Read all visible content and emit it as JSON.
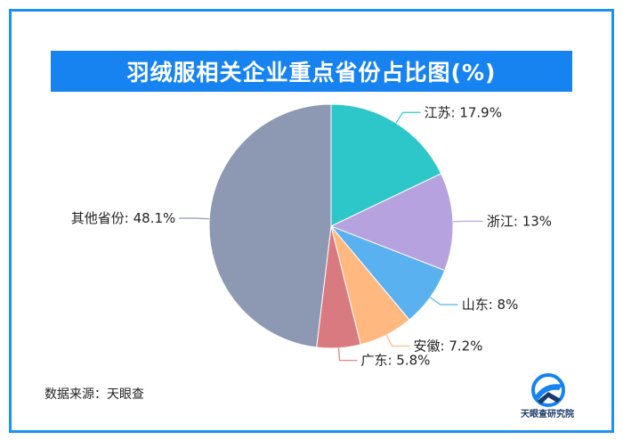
{
  "title": "羽绒服相关企业重点省份占比图(%)",
  "source": "数据来源：天眼查",
  "logo_text": "天眼查研究院",
  "chart_data": {
    "type": "pie",
    "title": "羽绒服相关企业重点省份占比图(%)",
    "slices": [
      {
        "label": "江苏",
        "value": 17.9,
        "color": "#2ec7c9",
        "text": "江苏: 17.9%"
      },
      {
        "label": "浙江",
        "value": 13,
        "color": "#b6a2de",
        "text": "浙江: 13%"
      },
      {
        "label": "山东",
        "value": 8,
        "color": "#5ab1ef",
        "text": "山东: 8%"
      },
      {
        "label": "安徽",
        "value": 7.2,
        "color": "#ffb980",
        "text": "安徽: 7.2%"
      },
      {
        "label": "广东",
        "value": 5.8,
        "color": "#d87a80",
        "text": "广东: 5.8%"
      },
      {
        "label": "其他省份",
        "value": 48.1,
        "color": "#8d98b3",
        "text": "其他省份: 48.1%"
      }
    ]
  }
}
